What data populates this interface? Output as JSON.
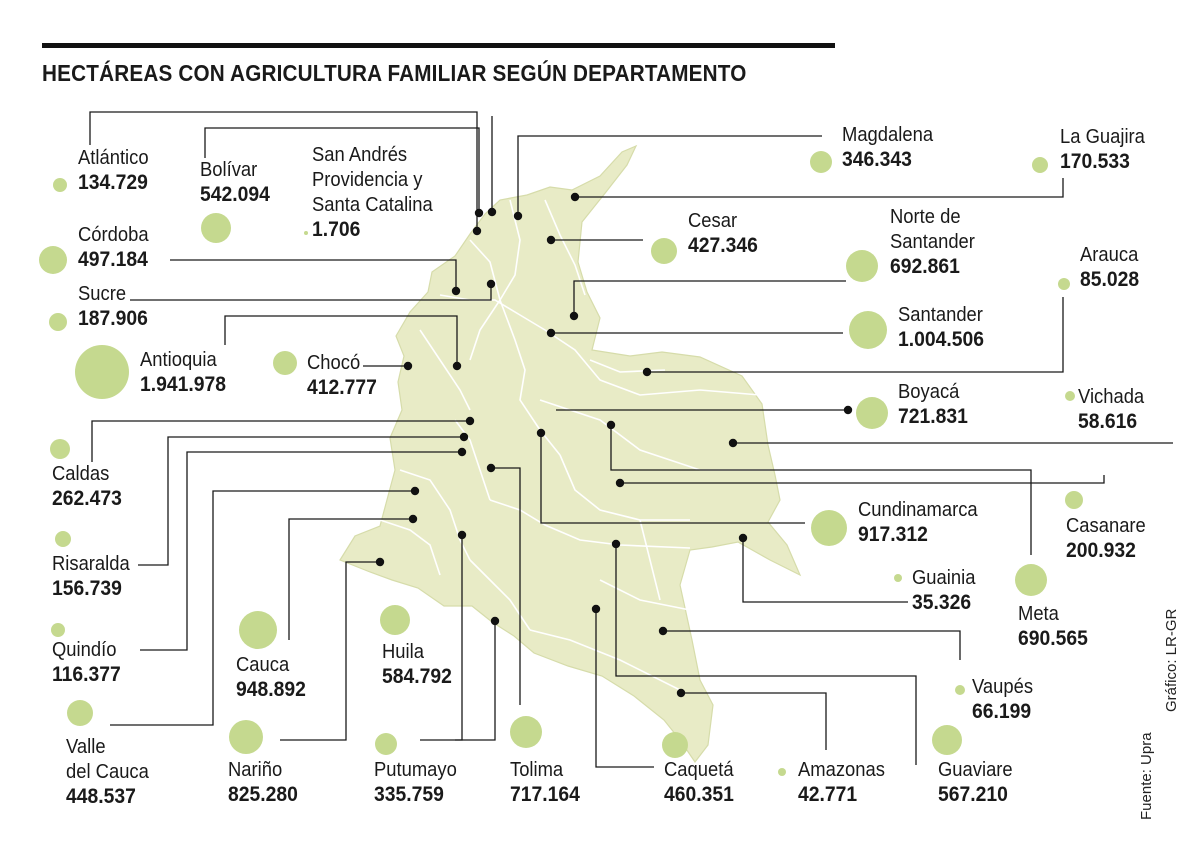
{
  "title": "HECTÁREAS CON AGRICULTURA FAMILIAR SEGÚN DEPARTAMENTO",
  "source": "Fuente: Upra",
  "credit": "Gráfico: LR-GR",
  "colors": {
    "map_fill": "#e8ebc6",
    "map_border": "#ffffff",
    "bubble": "#c5d98f",
    "line": "#1a1a1a"
  },
  "departments": [
    {
      "name": "Atlántico",
      "value": "134.729"
    },
    {
      "name": "Bolívar",
      "value": "542.094"
    },
    {
      "name": "San Andrés\nProvidencia y\nSanta Catalina",
      "value": "1.706"
    },
    {
      "name": "Magdalena",
      "value": "346.343"
    },
    {
      "name": "La Guajira",
      "value": "170.533"
    },
    {
      "name": "Córdoba",
      "value": "497.184"
    },
    {
      "name": "Cesar",
      "value": "427.346"
    },
    {
      "name": "Norte de\nSantander",
      "value": "692.861"
    },
    {
      "name": "Arauca",
      "value": "85.028"
    },
    {
      "name": "Sucre",
      "value": "187.906"
    },
    {
      "name": "Antioquia",
      "value": "1.941.978"
    },
    {
      "name": "Chocó",
      "value": "412.777"
    },
    {
      "name": "Santander",
      "value": "1.004.506"
    },
    {
      "name": "Boyacá",
      "value": "721.831"
    },
    {
      "name": "Vichada",
      "value": "58.616"
    },
    {
      "name": "Caldas",
      "value": "262.473"
    },
    {
      "name": "Risaralda",
      "value": "156.739"
    },
    {
      "name": "Cundinamarca",
      "value": "917.312"
    },
    {
      "name": "Casanare",
      "value": "200.932"
    },
    {
      "name": "Guainia",
      "value": "35.326"
    },
    {
      "name": "Meta",
      "value": "690.565"
    },
    {
      "name": "Quindío",
      "value": "116.377"
    },
    {
      "name": "Cauca",
      "value": "948.892"
    },
    {
      "name": "Huila",
      "value": "584.792"
    },
    {
      "name": "Vaupés",
      "value": "66.199"
    },
    {
      "name": "Valle\ndel Cauca",
      "value": "448.537"
    },
    {
      "name": "Nariño",
      "value": "825.280"
    },
    {
      "name": "Putumayo",
      "value": "335.759"
    },
    {
      "name": "Tolima",
      "value": "717.164"
    },
    {
      "name": "Caquetá",
      "value": "460.351"
    },
    {
      "name": "Amazonas",
      "value": "42.771"
    },
    {
      "name": "Guaviare",
      "value": "567.210"
    }
  ]
}
